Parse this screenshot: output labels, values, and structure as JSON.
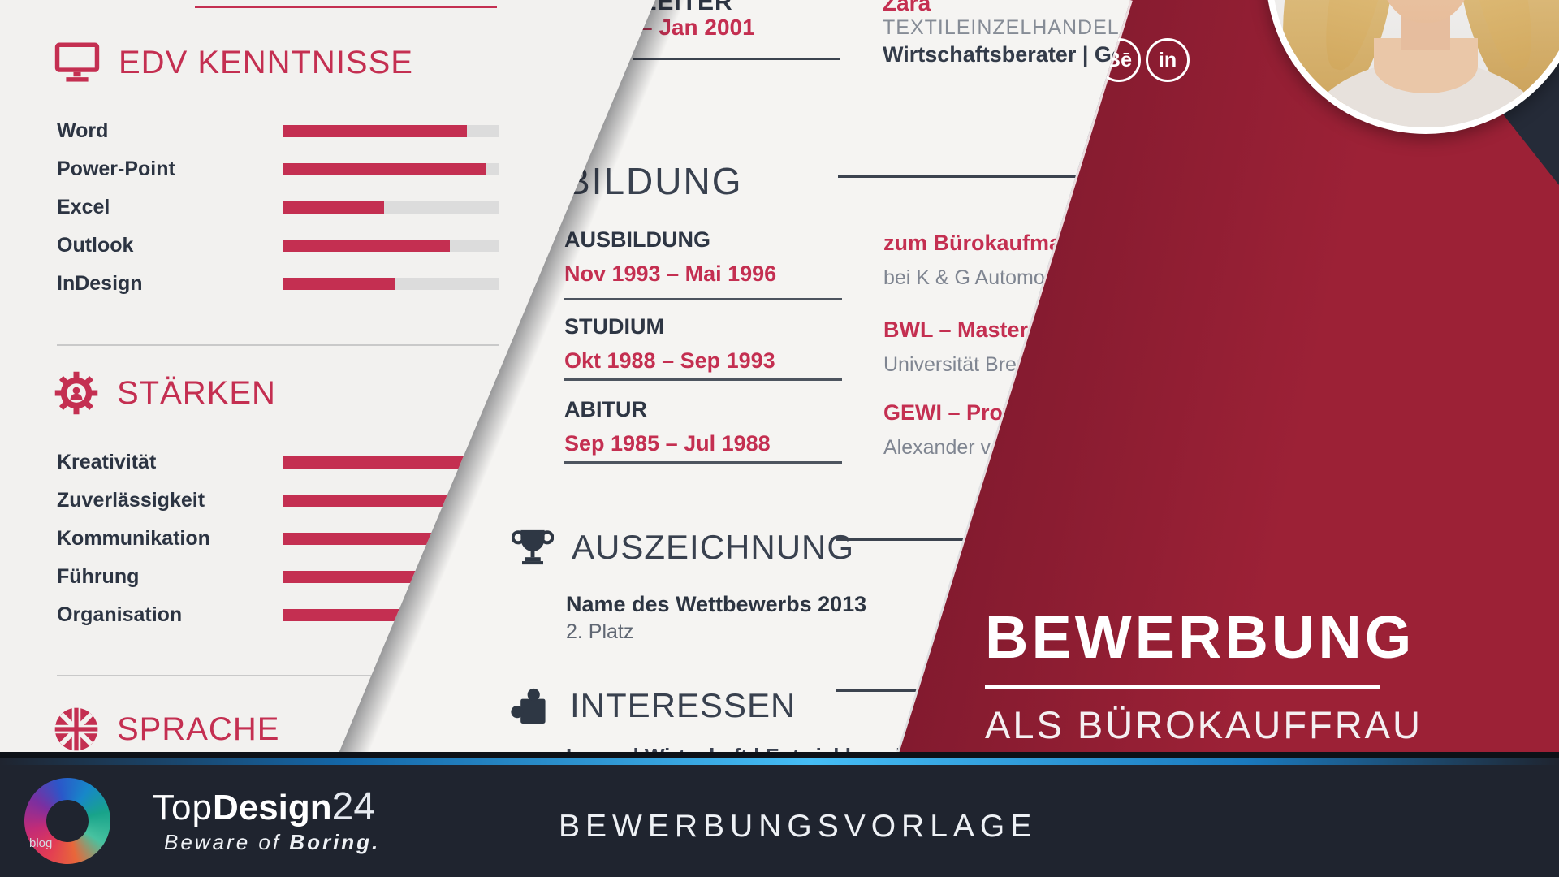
{
  "colors": {
    "accent": "#c42f51",
    "maroon_dark": "#3f0e1c",
    "maroon_light": "#9c2136",
    "navy_bg": "#252b38",
    "footer_bg": "#1f242f",
    "page_bg": "#f2f1ef",
    "page2_bg": "#f5f4f2",
    "track_gray": "#dcdcdc",
    "heading_dark": "#39414f",
    "text_dark": "#2e3644",
    "text_gray": "#868c96",
    "blue_line": "#45bdf5"
  },
  "left_page": {
    "sections": [
      {
        "id": "edv",
        "icon": "monitor-icon",
        "title": "EDV KENNTNISSE",
        "skills": [
          {
            "label": "Word",
            "percent": 85
          },
          {
            "label": "Power-Point",
            "percent": 94
          },
          {
            "label": "Excel",
            "percent": 47
          },
          {
            "label": "Outlook",
            "percent": 77
          },
          {
            "label": "InDesign",
            "percent": 52
          }
        ]
      },
      {
        "id": "staerken",
        "icon": "gear-user-icon",
        "title": "STÄRKEN",
        "skills": [
          {
            "label": "Kreativität",
            "percent": 91
          },
          {
            "label": "Zuverlässigkeit",
            "percent": 79
          },
          {
            "label": "Kommunikation",
            "percent": 100
          },
          {
            "label": "Führung",
            "percent": 63
          },
          {
            "label": "Organisation",
            "percent": 64
          }
        ]
      },
      {
        "id": "sprache",
        "icon": "uk-flag-icon",
        "title": "SPRACHE",
        "skills": []
      }
    ]
  },
  "middle_page": {
    "experience_fragment": {
      "role_fragment": "LEITER",
      "date_fragment": "– Jan 2001",
      "company": "Zara",
      "industry": "TEXTILEINZELHANDEL",
      "position": "Wirtschaftsberater | Geschäfts"
    },
    "bildung": {
      "title": "BILDUNG",
      "entries": [
        {
          "label": "AUSBILDUNG",
          "dates": "Nov 1993 – Mai 1996",
          "degree": "zum Bürokaufmann",
          "institution": "bei K & G Automobili"
        },
        {
          "label": "STUDIUM",
          "dates": "Okt 1988 – Sep 1993",
          "degree": "BWL – Master o",
          "institution": "Universität Brem"
        },
        {
          "label": "ABITUR",
          "dates": "Sep 1985 – Jul 1988",
          "degree": "GEWI – Profil",
          "institution": "Alexander von"
        }
      ]
    },
    "auszeichnung": {
      "title": "AUSZEICHNUNG",
      "award_name": "Name des Wettbewerbs 2013",
      "award_rank": "2. Platz"
    },
    "interessen": {
      "title": "INTERESSEN",
      "items": "Lesen | Wirtschaft | Entwicklung | Foto"
    }
  },
  "cover": {
    "title": "BEWERBUNG",
    "subtitle": "ALS BÜROKAUFFRAU",
    "social": [
      {
        "name": "behance",
        "label": "Bē"
      },
      {
        "name": "linkedin",
        "label": "in"
      }
    ]
  },
  "footer": {
    "logo_blog": "blog",
    "brand": [
      {
        "text": "Top",
        "style": "light"
      },
      {
        "text": "Design",
        "style": "bold"
      },
      {
        "text": "24",
        "style": "num"
      }
    ],
    "tagline_light": "Beware of ",
    "tagline_bold": "Boring.",
    "banner": "BEWERBUNGSVORLAGE"
  }
}
